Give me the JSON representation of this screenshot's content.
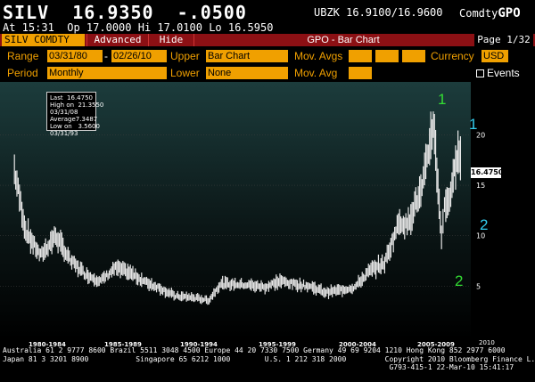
{
  "header": {
    "ticker": "SILV  16.9350  -.0500",
    "bid_ask": "UBZK 16.9100/16.9600",
    "source_prefix": "Comdty",
    "function": "GPO",
    "quote_line": "At 15:31  Op 17.0000 Hi 17.0100 Lo 16.5950"
  },
  "toolbar": {
    "security": "SILV COMDTY",
    "advanced_label": "Advanced",
    "hide_label": "Hide",
    "title": "GPO - Bar Chart",
    "page": "Page 1/32"
  },
  "params": {
    "range_label": "Range",
    "range_start": "03/31/80",
    "range_sep": "-",
    "range_end": "02/26/10",
    "upper_label": "Upper",
    "upper_value": "Bar Chart",
    "mov_avgs_label": "Mov. Avgs",
    "currency_label": "Currency",
    "currency_value": "USD",
    "period_label": "Period",
    "period_value": "Monthly",
    "lower_label": "Lower",
    "lower_value": "None",
    "mov_avg_label": "Mov. Avg",
    "events_label": "Events"
  },
  "stats": {
    "last_label": "Last",
    "last_value": "16.4750",
    "high_label": "High on 03/31/08",
    "high_value": "21.3550",
    "avg_label": "Average",
    "avg_value": "7.3487",
    "low_label": "Low on 03/31/93",
    "low_value": "3.5600"
  },
  "annotations": {
    "a1": "1",
    "a2": "1",
    "a3": "2",
    "a4": "2",
    "green": "#33dd33",
    "cyan": "#33ccee"
  },
  "last_price_tag": "16.4750",
  "chart_data": {
    "type": "bar",
    "period": "monthly",
    "y_ticks": [
      5,
      10,
      15,
      20
    ],
    "ylim": [
      0,
      25
    ],
    "x_labels": [
      "1980-1984",
      "1985-1989",
      "1990-1994",
      "1995-1999",
      "2000-2004",
      "2005-2009",
      "2010"
    ],
    "x": [
      1980.25,
      1981,
      1982,
      1983,
      1984,
      1985,
      1986,
      1987,
      1988,
      1989,
      1990,
      1991,
      1992,
      1993.25,
      1994,
      1995,
      1996,
      1997,
      1998,
      1999,
      2000,
      2001,
      2002,
      2003,
      2004,
      2005,
      2006,
      2006.5,
      2007,
      2007.5,
      2008.25,
      2008.8,
      2009,
      2009.5,
      2009.9,
      2010.15
    ],
    "values": [
      16.5,
      10.5,
      8.0,
      10.0,
      7.5,
      6.2,
      5.5,
      6.8,
      6.3,
      5.4,
      4.8,
      4.0,
      3.9,
      3.6,
      5.2,
      5.2,
      5.1,
      4.9,
      5.5,
      5.2,
      5.0,
      4.4,
      4.6,
      4.9,
      6.5,
      7.3,
      11.5,
      11.0,
      13.0,
      14.5,
      21.36,
      10.0,
      12.8,
      14.5,
      19.0,
      16.48
    ],
    "colors": {
      "bars": "#e8e8e8",
      "background_top": "#1c3c3c",
      "background_bottom": "#000000",
      "grid": "#444444"
    }
  },
  "footer": {
    "line1": "Australia 61 2 9777 8600 Brazil 5511 3048 4500 Europe 44 20 7330 7500 Germany 49 69 9204 1210 Hong Kong 852 2977 6000",
    "line2": "Japan 81 3 3201 8900           Singapore 65 6212 1000        U.S. 1 212 318 2000         Copyright 2010 Bloomberg Finance L.P.",
    "line3": "                                                                                          G793-415-1 22-Mar-10 15:41:17"
  }
}
